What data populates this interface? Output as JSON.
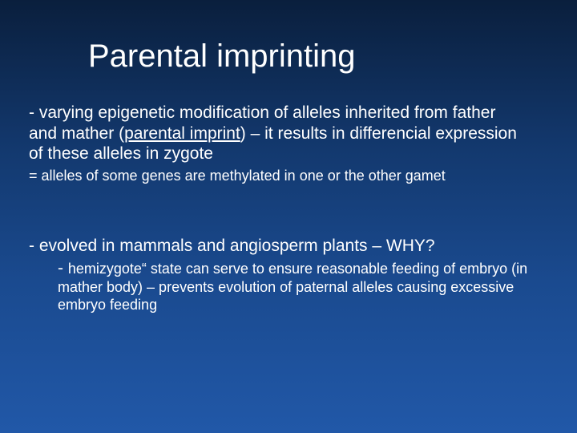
{
  "slide": {
    "background_gradient": [
      "#0a1f3d",
      "#13396f",
      "#1a4a8f",
      "#2158a8"
    ],
    "text_color": "#ffffff",
    "title": "Parental imprinting",
    "title_fontsize": 40,
    "para1_pre": "- varying epigenetic modification of alleles inherited from father and mather (",
    "para1_underlined": "parental imprint",
    "para1_post": ") – it results in differencial expression of these alleles in zygote",
    "para1_fontsize": 21,
    "para2": "= alleles of some genes are methylated in one or the other gamet",
    "para2_fontsize": 18,
    "para3": "- evolved in mammals and angiosperm plants – WHY?",
    "para3_fontsize": 21,
    "para4_dash": "- ",
    "para4_body": "hemizygote“ state can serve to ensure reasonable feeding of embryo (in mather body) – prevents evolution of paternal alleles causing excessive embryo feeding",
    "para4_dash_fontsize": 21,
    "para4_body_fontsize": 18
  }
}
